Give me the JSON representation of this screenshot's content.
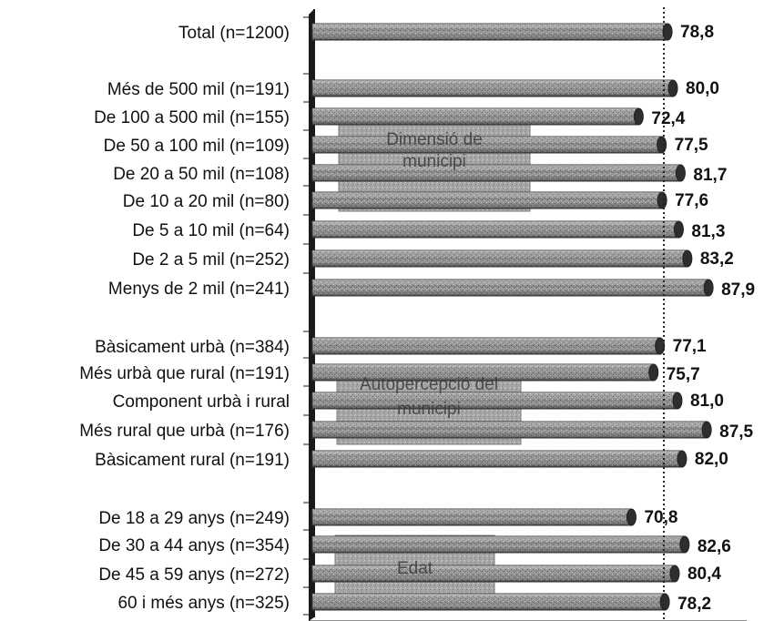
{
  "chart_data": {
    "type": "bar",
    "orientation": "horizontal",
    "xlim": [
      0,
      100
    ],
    "reference_value": 78.8,
    "groups": [
      {
        "name": "",
        "categories": [
          "Total (n=1200)"
        ],
        "values": [
          78.8
        ],
        "value_labels": [
          "78,8"
        ]
      },
      {
        "name": "Dimensió de municipi",
        "categories": [
          "Més de 500 mil (n=191)",
          "De 100 a 500 mil (n=155)",
          "De 50 a 100 mil (n=109)",
          "De 20 a 50 mil (n=108)",
          "De 10 a 20 mil (n=80)",
          "De 5 a 10 mil (n=64)",
          "De 2 a 5 mil (n=252)",
          "Menys de 2 mil (n=241)"
        ],
        "values": [
          80.0,
          72.4,
          77.5,
          81.7,
          77.6,
          81.3,
          83.2,
          87.9
        ],
        "value_labels": [
          "80,0",
          "72,4",
          "77,5",
          "81,7",
          "77,6",
          "81,3",
          "83,2",
          "87,9"
        ]
      },
      {
        "name": "Autopercepció del municipi",
        "categories": [
          "Bàsicament urbà (n=384)",
          "Més urbà que rural (n=191)",
          "Component urbà i rural",
          "Més rural que urbà (n=176)",
          "Bàsicament rural (n=191)"
        ],
        "values": [
          77.1,
          75.7,
          81.0,
          87.5,
          82.0
        ],
        "value_labels": [
          "77,1",
          "75,7",
          "81,0",
          "87,5",
          "82,0"
        ]
      },
      {
        "name": "Edat",
        "categories": [
          "De 18 a 29 anys (n=249)",
          "De 30 a 44 anys (n=354)",
          "De 45 a 59 anys (n=272)",
          "60 i més anys (n=325)"
        ],
        "values": [
          70.8,
          82.6,
          80.4,
          78.2
        ],
        "value_labels": [
          "70,8",
          "82,6",
          "80,4",
          "78,2"
        ]
      }
    ],
    "title": "",
    "xlabel": "",
    "ylabel": "",
    "grid": false,
    "legend": "none",
    "colors": {
      "bar": "#8a8a8a",
      "bar_dark": "#3c3c3c",
      "bar_light": "#c8c8c8",
      "axis": "#1a1a1a",
      "text": "#111111",
      "group_box": "#9a9a9a",
      "reference_line": "#222222"
    }
  }
}
